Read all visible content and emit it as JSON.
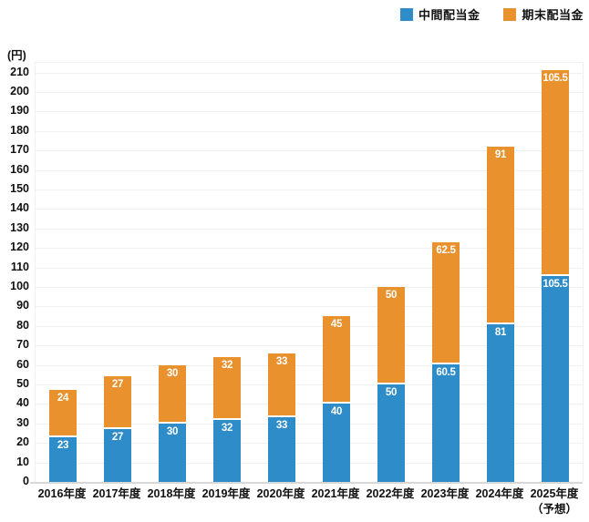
{
  "y_axis": {
    "unit_label": "(円)",
    "ticks": [
      0,
      10,
      20,
      30,
      40,
      50,
      60,
      70,
      80,
      90,
      100,
      110,
      120,
      130,
      140,
      150,
      160,
      170,
      180,
      190,
      200,
      210
    ]
  },
  "legend": {
    "items": [
      {
        "label": "中間配当金",
        "color": "#2E8CC9"
      },
      {
        "label": "期末配当金",
        "color": "#E8912D"
      }
    ]
  },
  "chart_data": {
    "type": "bar",
    "stacked": true,
    "title": "",
    "xlabel": "",
    "ylabel": "(円)",
    "ylim": [
      0,
      215
    ],
    "grid": true,
    "legend_position": "top-right",
    "categories": [
      "2016年度",
      "2017年度",
      "2018年度",
      "2019年度",
      "2020年度",
      "2021年度",
      "2022年度",
      "2023年度",
      "2024年度",
      "2025年度\n（予想）"
    ],
    "series": [
      {
        "name": "中間配当金",
        "color": "#2E8CC9",
        "values": [
          23,
          27,
          30,
          32,
          33,
          40,
          50,
          60.5,
          81,
          105.5
        ]
      },
      {
        "name": "期末配当金",
        "color": "#E8912D",
        "values": [
          24,
          27,
          30,
          32,
          33,
          45,
          50,
          62.5,
          91,
          105.5
        ]
      }
    ],
    "colors": {
      "interim": "#2E8CC9",
      "yearend": "#E8912D",
      "gridline": "#EFEFEF",
      "axis_line": "#D8D8D8"
    }
  }
}
